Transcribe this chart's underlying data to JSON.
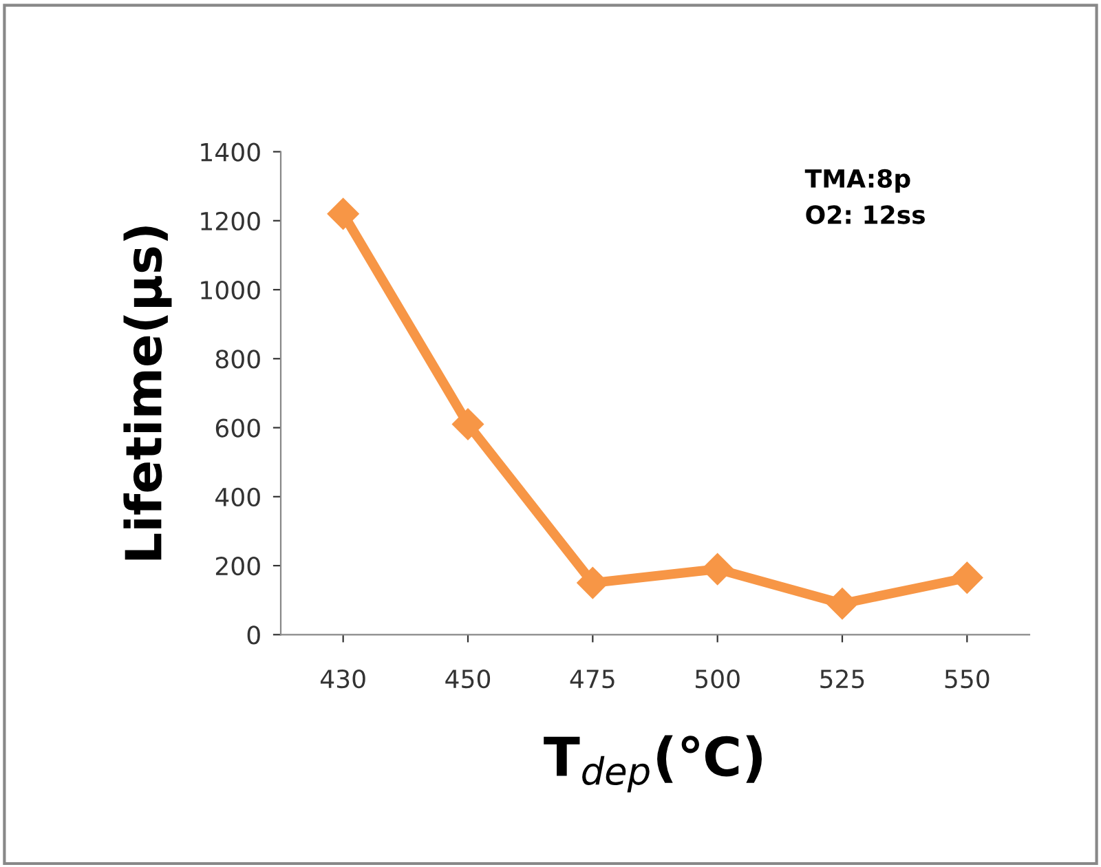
{
  "chart_data": {
    "type": "line",
    "xlabel": "T$_{dep}$(℃)",
    "ylabel": "Lifetime(μs)",
    "categories": [
      "430",
      "450",
      "475",
      "500",
      "525",
      "550"
    ],
    "series": [
      {
        "color": "#f79646",
        "values": [
          1220,
          610,
          150,
          190,
          90,
          165
        ]
      }
    ],
    "ylim": [
      0,
      1400
    ],
    "yticks": [
      0,
      200,
      400,
      600,
      800,
      1000,
      1200,
      1400
    ],
    "annotations": [
      "TMA:8p",
      "O2: 12ss"
    ],
    "marker": "diamond",
    "line_style": "solid",
    "grid": false,
    "legend": false
  }
}
